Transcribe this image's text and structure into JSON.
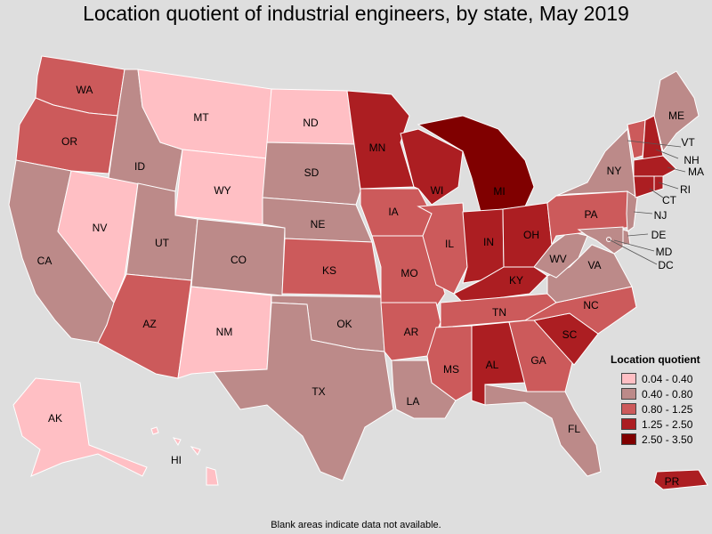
{
  "title": "Location quotient of industrial engineers, by state, May 2019",
  "footnote": "Blank areas indicate data not available.",
  "legend": {
    "title": "Location quotient",
    "items": [
      {
        "label": "0.04 - 0.40",
        "color": "#ffbfc4"
      },
      {
        "label": "0.40 - 0.80",
        "color": "#bc8a89"
      },
      {
        "label": "0.80 - 1.25",
        "color": "#cc5a5b"
      },
      {
        "label": "1.25 - 2.50",
        "color": "#ac1e22"
      },
      {
        "label": "2.50 - 3.50",
        "color": "#800000"
      }
    ]
  },
  "states": [
    {
      "abbr": "WA",
      "class": 2
    },
    {
      "abbr": "OR",
      "class": 2
    },
    {
      "abbr": "CA",
      "class": 1
    },
    {
      "abbr": "NV",
      "class": 0
    },
    {
      "abbr": "ID",
      "class": 1
    },
    {
      "abbr": "MT",
      "class": 0
    },
    {
      "abbr": "WY",
      "class": 0
    },
    {
      "abbr": "UT",
      "class": 1
    },
    {
      "abbr": "AZ",
      "class": 2
    },
    {
      "abbr": "CO",
      "class": 1
    },
    {
      "abbr": "NM",
      "class": 0
    },
    {
      "abbr": "ND",
      "class": 0
    },
    {
      "abbr": "SD",
      "class": 1
    },
    {
      "abbr": "NE",
      "class": 1
    },
    {
      "abbr": "KS",
      "class": 2
    },
    {
      "abbr": "OK",
      "class": 1
    },
    {
      "abbr": "TX",
      "class": 1
    },
    {
      "abbr": "MN",
      "class": 3
    },
    {
      "abbr": "IA",
      "class": 2
    },
    {
      "abbr": "MO",
      "class": 2
    },
    {
      "abbr": "AR",
      "class": 2
    },
    {
      "abbr": "LA",
      "class": 1
    },
    {
      "abbr": "WI",
      "class": 3
    },
    {
      "abbr": "IL",
      "class": 2
    },
    {
      "abbr": "MI",
      "class": 4
    },
    {
      "abbr": "IN",
      "class": 3
    },
    {
      "abbr": "OH",
      "class": 3
    },
    {
      "abbr": "KY",
      "class": 3
    },
    {
      "abbr": "TN",
      "class": 2
    },
    {
      "abbr": "MS",
      "class": 2
    },
    {
      "abbr": "AL",
      "class": 3
    },
    {
      "abbr": "GA",
      "class": 2
    },
    {
      "abbr": "FL",
      "class": 1
    },
    {
      "abbr": "SC",
      "class": 3
    },
    {
      "abbr": "NC",
      "class": 2
    },
    {
      "abbr": "VA",
      "class": 1
    },
    {
      "abbr": "WV",
      "class": 1
    },
    {
      "abbr": "PA",
      "class": 2
    },
    {
      "abbr": "NY",
      "class": 1
    },
    {
      "abbr": "ME",
      "class": 1
    },
    {
      "abbr": "VT",
      "class": 2
    },
    {
      "abbr": "NH",
      "class": 3
    },
    {
      "abbr": "MA",
      "class": 3
    },
    {
      "abbr": "RI",
      "class": 3
    },
    {
      "abbr": "CT",
      "class": 3
    },
    {
      "abbr": "NJ",
      "class": 1
    },
    {
      "abbr": "DE",
      "class": 1
    },
    {
      "abbr": "MD",
      "class": 1
    },
    {
      "abbr": "DC",
      "class": 1
    },
    {
      "abbr": "AK",
      "class": 0
    },
    {
      "abbr": "HI",
      "class": 0
    },
    {
      "abbr": "PR",
      "class": 3
    }
  ]
}
